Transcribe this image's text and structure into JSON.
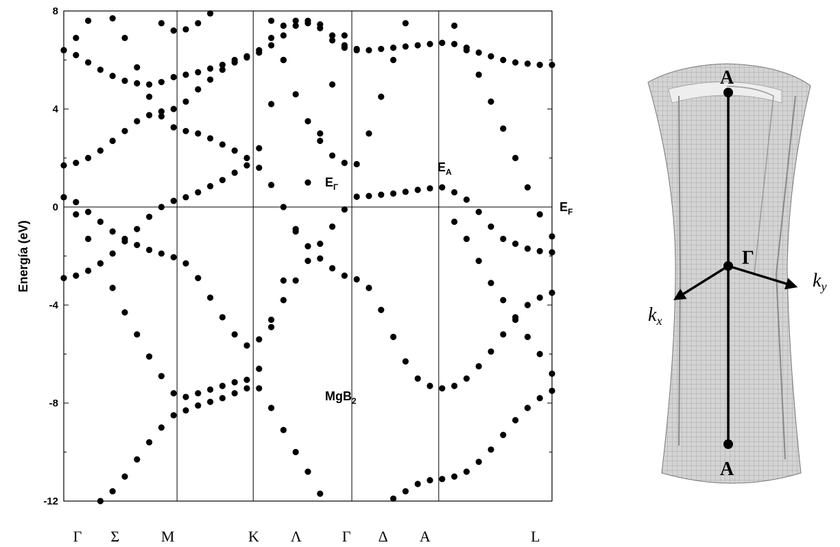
{
  "chart_data": {
    "type": "scatter",
    "ylabel": "Energía (eV)",
    "color": "#000000",
    "ylim": [
      -12,
      8
    ],
    "yticks": [
      -12,
      -8,
      -4,
      0,
      4,
      8
    ],
    "yminorticks": [
      -10,
      -6,
      -2,
      2,
      6
    ],
    "xlim": [
      0,
      100
    ],
    "xticks": [
      {
        "value": 2.8,
        "label": "Γ"
      },
      {
        "value": 10.5,
        "label": "Σ"
      },
      {
        "value": 21.3,
        "label": "M"
      },
      {
        "value": 38.9,
        "label": "K"
      },
      {
        "value": 47.6,
        "label": "Λ"
      },
      {
        "value": 57.9,
        "label": "Γ"
      },
      {
        "value": 65.4,
        "label": "Δ"
      },
      {
        "value": 74.0,
        "label": "A"
      },
      {
        "value": 96.6,
        "label": "L"
      }
    ],
    "vlines": [
      23.2,
      38.8,
      59.0,
      76.8
    ],
    "fermi_level": 0,
    "annotations": [
      {
        "text": "E",
        "sub": "Γ"
      },
      {
        "text": "E",
        "sub": "A"
      },
      {
        "text": "E",
        "sub": "F"
      },
      {
        "text": "MgB",
        "sub": "2"
      }
    ],
    "x": [
      0,
      2.5,
      5,
      7.5,
      10,
      12.5,
      15,
      17.5,
      20,
      22.5,
      25,
      27.5,
      30,
      32.5,
      35,
      37.5,
      40,
      42.5,
      45,
      47.5,
      50,
      52.5,
      55,
      57.5,
      60,
      62.5,
      65,
      67.5,
      70,
      72.5,
      75,
      77.5,
      80,
      82.5,
      85,
      87.5,
      90,
      92.5,
      95,
      97.5,
      100
    ],
    "series": [
      {
        "values": [
          6.4,
          6.2,
          5.9,
          5.6,
          5.35,
          5.15,
          5.05,
          5.0,
          5.1,
          5.3,
          5.4,
          5.5,
          5.65,
          5.8,
          6.0,
          6.15,
          6.3,
          6.6,
          7.0,
          7.4,
          7.5,
          7.3,
          6.8,
          6.5,
          6.4,
          6.4,
          6.45,
          6.5,
          6.55,
          6.6,
          6.65,
          6.7,
          6.65,
          6.5,
          6.3,
          6.15,
          6.0,
          5.9,
          5.85,
          5.8,
          5.8
        ]
      },
      {
        "values": [
          6.4,
          6.9,
          7.6,
          null,
          null,
          null,
          null,
          null,
          7.5,
          7.2,
          7.25,
          7.5,
          7.9,
          null,
          null,
          null,
          6.4,
          6.9,
          7.4,
          7.6,
          7.6,
          7.45,
          7.0,
          6.6,
          6.45,
          null,
          null,
          null,
          null,
          null,
          null,
          null,
          null,
          null,
          null,
          null,
          null,
          null,
          null,
          null,
          null
        ]
      },
      {
        "values": [
          1.7,
          1.8,
          2.0,
          2.3,
          2.7,
          3.1,
          3.5,
          3.75,
          3.9,
          4.0,
          4.3,
          4.8,
          5.2,
          5.6,
          5.9,
          6.1,
          null,
          null,
          null,
          null,
          null,
          null,
          null,
          null,
          null,
          null,
          null,
          null,
          null,
          null,
          null,
          null,
          null,
          null,
          null,
          null,
          null,
          null,
          null,
          null,
          null
        ]
      },
      {
        "values": [
          null,
          null,
          null,
          null,
          null,
          null,
          null,
          null,
          null,
          null,
          null,
          null,
          null,
          null,
          null,
          null,
          null,
          7.6,
          6.0,
          4.6,
          3.5,
          2.7,
          2.1,
          1.8,
          1.75,
          3.0,
          4.5,
          6.0,
          7.5,
          null,
          null,
          null,
          null,
          null,
          null,
          null,
          null,
          null,
          null,
          null,
          null
        ]
      },
      {
        "values": [
          null,
          null,
          null,
          null,
          7.7,
          6.9,
          5.7,
          4.5,
          3.7,
          3.25,
          3.1,
          3.0,
          2.8,
          2.55,
          2.3,
          2.0,
          1.6,
          0.9,
          0.0,
          -0.9,
          -1.6,
          -2.1,
          -2.5,
          -2.8,
          -2.95,
          -3.3,
          -4.2,
          -5.3,
          -6.3,
          -7.0,
          -7.3,
          -7.4,
          -7.3,
          -7.0,
          -6.5,
          -5.9,
          -5.2,
          -4.5,
          -4.0,
          -3.7,
          -3.5
        ]
      },
      {
        "values": [
          0.4,
          0.2,
          -0.2,
          -0.6,
          -1.0,
          -1.3,
          -1.55,
          -1.75,
          -1.9,
          -2.05,
          -2.3,
          -2.9,
          -3.7,
          -4.5,
          -5.2,
          -5.65,
          -5.4,
          -4.6,
          -3.8,
          -3.0,
          -2.2,
          -1.5,
          -0.8,
          -0.1,
          0.42,
          0.45,
          0.5,
          0.55,
          0.62,
          0.7,
          0.76,
          0.8,
          0.6,
          0.3,
          -0.2,
          -0.8,
          -1.3,
          -1.5,
          -1.7,
          -1.8,
          -1.85
        ]
      },
      {
        "values": [
          -2.9,
          -2.8,
          -2.6,
          -2.3,
          -1.9,
          -1.4,
          -0.9,
          -0.4,
          0.0,
          0.25,
          0.4,
          0.6,
          0.85,
          1.1,
          1.4,
          1.7,
          2.4,
          4.2,
          6.0,
          null,
          null,
          null,
          null,
          null,
          null,
          null,
          null,
          null,
          null,
          null,
          null,
          null,
          null,
          null,
          null,
          null,
          null,
          null,
          null,
          null,
          null
        ]
      },
      {
        "values": [
          0.4,
          -0.3,
          -1.3,
          -2.3,
          -3.3,
          -4.3,
          -5.2,
          -6.1,
          -6.9,
          -7.6,
          -7.75,
          -7.6,
          -7.45,
          -7.3,
          -7.15,
          -7.05,
          -7.4,
          -8.2,
          -9.1,
          -10.0,
          -10.8,
          -11.7,
          null,
          null,
          null,
          null,
          null,
          null,
          null,
          null,
          null,
          null,
          null,
          null,
          null,
          null,
          null,
          null,
          null,
          null,
          null
        ]
      },
      {
        "values": [
          null,
          null,
          null,
          -12.0,
          -11.6,
          -11.0,
          -10.3,
          -9.6,
          -9.0,
          -8.5,
          -8.3,
          -8.1,
          -7.95,
          -7.8,
          -7.6,
          -7.4,
          -6.6,
          -4.9,
          -3.0,
          -1.0,
          1.0,
          3.0,
          5.0,
          7.0,
          null,
          null,
          null,
          null,
          null,
          null,
          null,
          null,
          null,
          null,
          null,
          null,
          null,
          null,
          null,
          null,
          null
        ]
      },
      {
        "values": [
          null,
          null,
          null,
          null,
          null,
          null,
          null,
          null,
          null,
          null,
          null,
          null,
          null,
          null,
          null,
          null,
          null,
          null,
          null,
          null,
          null,
          null,
          null,
          null,
          null,
          null,
          null,
          -11.9,
          -11.6,
          -11.3,
          -11.15,
          -11.1,
          -11.0,
          -10.8,
          -10.4,
          -9.9,
          -9.3,
          -8.7,
          -8.2,
          -7.8,
          -7.5
        ]
      },
      {
        "values": [
          null,
          null,
          null,
          null,
          null,
          null,
          null,
          null,
          null,
          null,
          null,
          null,
          null,
          null,
          null,
          null,
          null,
          null,
          null,
          null,
          null,
          null,
          null,
          null,
          null,
          null,
          null,
          null,
          null,
          null,
          null,
          null,
          7.4,
          6.4,
          5.4,
          4.3,
          3.2,
          2.0,
          0.8,
          -0.3,
          -1.2
        ]
      },
      {
        "values": [
          null,
          null,
          null,
          null,
          null,
          null,
          null,
          null,
          null,
          null,
          null,
          null,
          null,
          null,
          null,
          null,
          null,
          null,
          null,
          null,
          null,
          null,
          null,
          null,
          null,
          null,
          null,
          null,
          null,
          null,
          null,
          null,
          -0.6,
          -1.3,
          -2.2,
          -3.1,
          -3.8,
          -4.6,
          -5.3,
          -6.0,
          -6.8
        ]
      }
    ]
  },
  "diagram": {
    "labels": [
      {
        "text": "A"
      },
      {
        "text": "Γ"
      },
      {
        "text": "A"
      },
      {
        "text": "k",
        "sub": "x"
      },
      {
        "text": "k",
        "sub": "y"
      }
    ]
  }
}
